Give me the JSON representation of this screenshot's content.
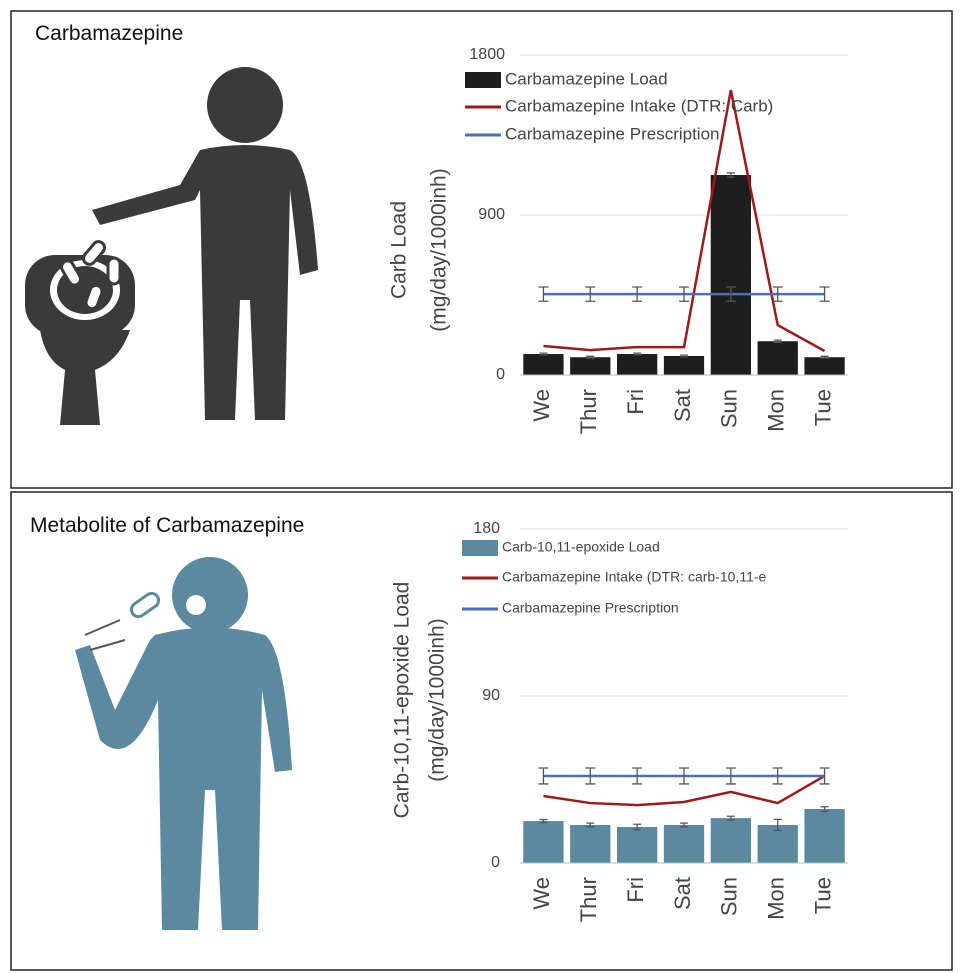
{
  "chart_data": [
    {
      "type": "bar",
      "panel_title": "Carbamazepine",
      "ylabel": [
        "Carb Load",
        "(mg/day/1000inh)"
      ],
      "categories": [
        "We",
        "Thur",
        "Fri",
        "Sat",
        "Sun",
        "Mon",
        "Tue"
      ],
      "ylim": [
        0,
        1800
      ],
      "yticks": [
        0,
        900,
        1800
      ],
      "grid": true,
      "series": [
        {
          "name": "Carbamazepine Load",
          "type": "bar",
          "color": "#1e1e1e",
          "values": [
            118,
            100,
            118,
            107,
            1125,
            190,
            100
          ],
          "errors": [
            5,
            5,
            5,
            5,
            12,
            6,
            5
          ]
        },
        {
          "name": "Carbamazepine Intake (DTR: Carb)",
          "type": "line",
          "color": "#a01818",
          "values": [
            163,
            140,
            157,
            157,
            1603,
            281,
            135
          ]
        },
        {
          "name": "Carbamazepine Prescription",
          "type": "line",
          "color": "#4a6fb5",
          "values": [
            455,
            455,
            455,
            455,
            455,
            455,
            455
          ],
          "errors": [
            40,
            40,
            40,
            40,
            40,
            40,
            40
          ]
        }
      ]
    },
    {
      "type": "bar",
      "panel_title": "Metabolite of Carbamazepine",
      "ylabel": [
        "Carb-10,11-epoxide Load",
        "(mg/day/1000inh)"
      ],
      "categories": [
        "We",
        "Thur",
        "Fri",
        "Sat",
        "Sun",
        "Mon",
        "Tue"
      ],
      "ylim": [
        0,
        180
      ],
      "yticks": [
        0,
        90,
        180
      ],
      "grid": true,
      "series": [
        {
          "name": "Carb-10,11-epoxide Load",
          "type": "bar",
          "color": "#5b8aa0",
          "values": [
            22.6,
            20.5,
            19.4,
            20.5,
            24.2,
            20.5,
            29.1
          ],
          "errors": [
            0.8,
            1,
            1.5,
            1,
            1,
            3,
            1.2
          ]
        },
        {
          "name": "Carbamazepine Intake (DTR: carb-10,11-e",
          "type": "line",
          "color": "#a01818",
          "values": [
            36.1,
            32.3,
            31.2,
            32.9,
            38.3,
            32.3,
            46.9
          ]
        },
        {
          "name": "Carbamazepine Prescription",
          "type": "line",
          "color": "#4a6fb5",
          "values": [
            46.9,
            46.9,
            46.9,
            46.9,
            46.9,
            46.9,
            46.9
          ],
          "errors": [
            4.3,
            4.3,
            4.3,
            4.3,
            4.3,
            4.3,
            4.3
          ]
        }
      ]
    }
  ]
}
